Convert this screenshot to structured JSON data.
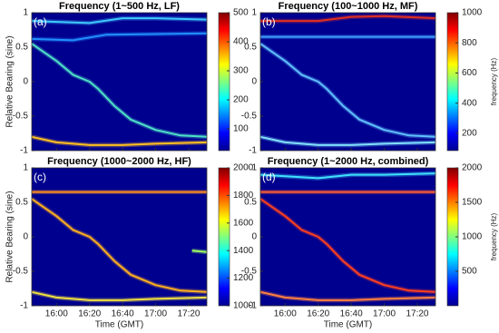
{
  "chart_data": [
    {
      "type": "line",
      "title": "Frequency (1~500 Hz, LF)",
      "panel_label": "(a)",
      "ylabel": "Relative Bearing (sine)",
      "xlim": [
        "15:45",
        "17:31"
      ],
      "xticks": [
        "16:00",
        "16:20",
        "16:40",
        "17:00",
        "17:20"
      ],
      "show_xticklabels": false,
      "ylim": [
        -1,
        1
      ],
      "yticks": [
        -1,
        -0.5,
        0,
        0.5,
        1
      ],
      "background": "#00008f",
      "colorbar": {
        "lim": [
          25,
          500
        ],
        "ticks": [
          100,
          200,
          300,
          400,
          500
        ]
      },
      "series": [
        {
          "color": "#4fe0c8",
          "x": [
            "15:45",
            "16:00",
            "16:10",
            "16:20",
            "16:25",
            "16:35",
            "16:45",
            "17:00",
            "17:15",
            "17:31"
          ],
          "values": [
            0.55,
            0.3,
            0.1,
            0.0,
            -0.1,
            -0.35,
            -0.55,
            -0.7,
            -0.78,
            -0.8
          ]
        },
        {
          "color": "#ffc020",
          "x": [
            "15:45",
            "16:00",
            "16:20",
            "16:40",
            "17:00",
            "17:31"
          ],
          "values": [
            -0.8,
            -0.88,
            -0.92,
            -0.92,
            -0.9,
            -0.88
          ]
        },
        {
          "color": "#40c8ff",
          "x": [
            "15:45",
            "16:20",
            "16:40",
            "17:00",
            "17:31"
          ],
          "values": [
            0.88,
            0.85,
            0.92,
            0.92,
            0.9
          ]
        },
        {
          "color": "#2090ff",
          "x": [
            "15:45",
            "16:10",
            "16:30",
            "17:31"
          ],
          "values": [
            0.62,
            0.6,
            0.68,
            0.7
          ]
        }
      ]
    },
    {
      "type": "line",
      "title": "Frequency (100~1000 Hz, MF)",
      "panel_label": "(b)",
      "xlim": [
        "15:45",
        "17:31"
      ],
      "xticks": [
        "16:00",
        "16:20",
        "16:40",
        "17:00",
        "17:20"
      ],
      "show_xticklabels": false,
      "ylim": [
        -1,
        1
      ],
      "yticks": [
        -1,
        -0.5,
        0,
        0.5,
        1
      ],
      "background": "#00008f",
      "colorbar": {
        "lim": [
          85,
          1000
        ],
        "ticks": [
          200,
          400,
          600,
          800,
          1000
        ],
        "label": "frequency (Hz)"
      },
      "series": [
        {
          "color": "#60c0ff",
          "x": [
            "15:45",
            "16:00",
            "16:10",
            "16:20",
            "16:25",
            "16:35",
            "16:45",
            "17:00",
            "17:15",
            "17:31"
          ],
          "values": [
            0.55,
            0.3,
            0.1,
            0.0,
            -0.1,
            -0.35,
            -0.55,
            -0.7,
            -0.78,
            -0.8
          ]
        },
        {
          "color": "#80e0ff",
          "x": [
            "15:45",
            "16:00",
            "16:20",
            "16:40",
            "17:00",
            "17:31"
          ],
          "values": [
            -0.8,
            -0.88,
            -0.92,
            -0.92,
            -0.9,
            -0.88
          ]
        },
        {
          "color": "#e03020",
          "x": [
            "15:45",
            "16:20",
            "16:40",
            "17:00",
            "17:31"
          ],
          "values": [
            0.88,
            0.88,
            0.94,
            0.95,
            0.92
          ]
        },
        {
          "color": "#40a0ff",
          "x": [
            "15:45",
            "17:31"
          ],
          "values": [
            0.65,
            0.65
          ]
        }
      ]
    },
    {
      "type": "line",
      "title": "Frequency (1000~2000 Hz, HF)",
      "panel_label": "(c)",
      "ylabel": "Relative Bearing (sine)",
      "xlabel": "Time (GMT)",
      "xlim": [
        "15:45",
        "17:31"
      ],
      "xticks": [
        "16:00",
        "16:20",
        "16:40",
        "17:00",
        "17:20"
      ],
      "show_xticklabels": true,
      "ylim": [
        -1,
        1
      ],
      "yticks": [
        -1,
        -0.5,
        0,
        0.5,
        1
      ],
      "background": "#00008f",
      "colorbar": {
        "lim": [
          1000,
          2000
        ],
        "ticks": [
          1000,
          1200,
          1400,
          1600,
          1800,
          2000
        ]
      },
      "series": [
        {
          "color": "#ffb020",
          "x": [
            "15:45",
            "16:00",
            "16:10",
            "16:20",
            "16:25",
            "16:35",
            "16:45",
            "17:00",
            "17:15",
            "17:31"
          ],
          "values": [
            0.55,
            0.3,
            0.1,
            0.0,
            -0.1,
            -0.35,
            -0.55,
            -0.7,
            -0.78,
            -0.8
          ]
        },
        {
          "color": "#f0e040",
          "x": [
            "15:45",
            "16:00",
            "16:20",
            "16:40",
            "17:00",
            "17:31"
          ],
          "values": [
            -0.8,
            -0.88,
            -0.92,
            -0.92,
            -0.9,
            -0.88
          ]
        },
        {
          "color": "#ff9020",
          "x": [
            "15:45",
            "17:31"
          ],
          "values": [
            0.65,
            0.65
          ]
        },
        {
          "color": "#a0ff60",
          "x": [
            "17:22",
            "17:31"
          ],
          "values": [
            -0.2,
            -0.22
          ]
        }
      ]
    },
    {
      "type": "line",
      "title": "Frequency (1~2000 Hz, combined)",
      "panel_label": "(d)",
      "xlabel": "Time (GMT)",
      "xlim": [
        "15:45",
        "17:31"
      ],
      "xticks": [
        "16:00",
        "16:20",
        "16:40",
        "17:00",
        "17:20"
      ],
      "show_xticklabels": true,
      "ylim": [
        -1,
        1
      ],
      "yticks": [
        -1,
        -0.5,
        0,
        0.5,
        1
      ],
      "background": "#00008f",
      "colorbar": {
        "lim": [
          0,
          2000
        ],
        "ticks": [
          500,
          1000,
          1500,
          2000
        ],
        "label": "frequency (Hz)"
      },
      "series": [
        {
          "color": "#ff4020",
          "x": [
            "15:45",
            "16:00",
            "16:10",
            "16:20",
            "16:25",
            "16:35",
            "16:45",
            "17:00",
            "17:15",
            "17:31"
          ],
          "values": [
            0.55,
            0.3,
            0.1,
            0.0,
            -0.1,
            -0.35,
            -0.55,
            -0.7,
            -0.78,
            -0.8
          ]
        },
        {
          "color": "#ff8040",
          "x": [
            "15:45",
            "16:00",
            "16:20",
            "16:40",
            "17:00",
            "17:31"
          ],
          "values": [
            -0.8,
            -0.88,
            -0.92,
            -0.92,
            -0.9,
            -0.88
          ]
        },
        {
          "color": "#40e0ff",
          "x": [
            "15:45",
            "16:20",
            "16:40",
            "17:00",
            "17:31"
          ],
          "values": [
            0.9,
            0.85,
            0.9,
            0.9,
            0.92
          ]
        },
        {
          "color": "#ff6030",
          "x": [
            "15:45",
            "17:31"
          ],
          "values": [
            0.65,
            0.65
          ]
        }
      ]
    }
  ]
}
